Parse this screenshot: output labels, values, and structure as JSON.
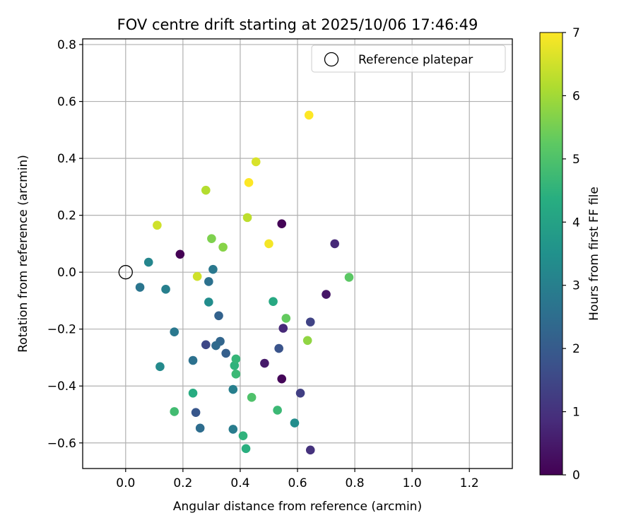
{
  "chart_data": {
    "type": "scatter",
    "title": "FOV centre drift starting at 2025/10/06 17:46:49",
    "xlabel": "Angular distance from reference (arcmin)",
    "ylabel": "Rotation from reference (arcmin)",
    "xlim": [
      -0.15,
      1.35
    ],
    "ylim": [
      -0.69,
      0.82
    ],
    "xticks": [
      0.0,
      0.2,
      0.4,
      0.6,
      0.8,
      1.0,
      1.2
    ],
    "xtick_labels": [
      "0.0",
      "0.2",
      "0.4",
      "0.6",
      "0.8",
      "1.0",
      "1.2"
    ],
    "yticks": [
      0.8,
      0.6,
      0.4,
      0.2,
      0.0,
      -0.2,
      -0.4,
      -0.6
    ],
    "ytick_labels": [
      "0.8",
      "0.6",
      "0.4",
      "0.2",
      "0.0",
      "−0.2",
      "−0.4",
      "−0.6"
    ],
    "grid": true,
    "legend": {
      "position": "top-right",
      "entries": [
        "Reference platepar"
      ]
    },
    "reference_point": {
      "x": 0.0,
      "y": 0.0
    },
    "colorbar": {
      "label": "Hours from first FF file",
      "colormap": "viridis",
      "range": [
        0,
        7
      ],
      "ticks": [
        0,
        1,
        2,
        3,
        4,
        5,
        6,
        7
      ],
      "tick_labels": [
        "0",
        "1",
        "2",
        "3",
        "4",
        "5",
        "6",
        "7"
      ]
    },
    "series": [
      {
        "name": "FOV centre",
        "points": [
          {
            "x": 0.19,
            "y": 0.063,
            "h": 0.0
          },
          {
            "x": 0.545,
            "y": 0.17,
            "h": 0.05
          },
          {
            "x": 0.545,
            "y": -0.375,
            "h": 0.1
          },
          {
            "x": 0.7,
            "y": -0.078,
            "h": 0.4
          },
          {
            "x": 0.485,
            "y": -0.32,
            "h": 0.5
          },
          {
            "x": 0.73,
            "y": 0.1,
            "h": 0.8
          },
          {
            "x": 0.55,
            "y": -0.197,
            "h": 0.8
          },
          {
            "x": 0.645,
            "y": -0.625,
            "h": 1.0
          },
          {
            "x": 0.61,
            "y": -0.425,
            "h": 1.3
          },
          {
            "x": 0.645,
            "y": -0.175,
            "h": 1.4
          },
          {
            "x": 0.28,
            "y": -0.255,
            "h": 1.5
          },
          {
            "x": 0.535,
            "y": -0.268,
            "h": 1.8
          },
          {
            "x": 0.245,
            "y": -0.493,
            "h": 1.9
          },
          {
            "x": 0.35,
            "y": -0.285,
            "h": 2.1
          },
          {
            "x": 0.325,
            "y": -0.153,
            "h": 2.2
          },
          {
            "x": 0.33,
            "y": -0.243,
            "h": 2.3
          },
          {
            "x": 0.315,
            "y": -0.258,
            "h": 2.4
          },
          {
            "x": 0.26,
            "y": -0.548,
            "h": 2.5
          },
          {
            "x": 0.235,
            "y": -0.31,
            "h": 2.6
          },
          {
            "x": 0.29,
            "y": -0.033,
            "h": 2.6
          },
          {
            "x": 0.05,
            "y": -0.053,
            "h": 2.7
          },
          {
            "x": 0.17,
            "y": -0.21,
            "h": 2.8
          },
          {
            "x": 0.305,
            "y": 0.01,
            "h": 2.8
          },
          {
            "x": 0.375,
            "y": -0.552,
            "h": 2.9
          },
          {
            "x": 0.14,
            "y": -0.06,
            "h": 3.0
          },
          {
            "x": 0.375,
            "y": -0.412,
            "h": 3.0
          },
          {
            "x": 0.08,
            "y": 0.035,
            "h": 3.2
          },
          {
            "x": 0.12,
            "y": -0.332,
            "h": 3.3
          },
          {
            "x": 0.59,
            "y": -0.53,
            "h": 3.4
          },
          {
            "x": 0.29,
            "y": -0.105,
            "h": 3.4
          },
          {
            "x": 0.515,
            "y": -0.103,
            "h": 4.2
          },
          {
            "x": 0.235,
            "y": -0.425,
            "h": 4.3
          },
          {
            "x": 0.42,
            "y": -0.62,
            "h": 4.4
          },
          {
            "x": 0.41,
            "y": -0.575,
            "h": 4.5
          },
          {
            "x": 0.38,
            "y": -0.328,
            "h": 4.5
          },
          {
            "x": 0.385,
            "y": -0.305,
            "h": 4.6
          },
          {
            "x": 0.385,
            "y": -0.358,
            "h": 4.7
          },
          {
            "x": 0.53,
            "y": -0.485,
            "h": 4.7
          },
          {
            "x": 0.17,
            "y": -0.49,
            "h": 4.8
          },
          {
            "x": 0.44,
            "y": -0.44,
            "h": 5.0
          },
          {
            "x": 0.78,
            "y": -0.018,
            "h": 5.2
          },
          {
            "x": 0.56,
            "y": -0.162,
            "h": 5.3
          },
          {
            "x": 0.3,
            "y": 0.118,
            "h": 5.6
          },
          {
            "x": 0.34,
            "y": 0.088,
            "h": 5.7
          },
          {
            "x": 0.635,
            "y": -0.24,
            "h": 5.8
          },
          {
            "x": 0.28,
            "y": 0.288,
            "h": 6.2
          },
          {
            "x": 0.425,
            "y": 0.192,
            "h": 6.3
          },
          {
            "x": 0.25,
            "y": -0.015,
            "h": 6.5
          },
          {
            "x": 0.11,
            "y": 0.165,
            "h": 6.5
          },
          {
            "x": 0.455,
            "y": 0.388,
            "h": 6.6
          },
          {
            "x": 0.5,
            "y": 0.1,
            "h": 6.9
          },
          {
            "x": 0.43,
            "y": 0.315,
            "h": 7.0
          },
          {
            "x": 0.64,
            "y": 0.552,
            "h": 7.0
          }
        ]
      }
    ]
  }
}
